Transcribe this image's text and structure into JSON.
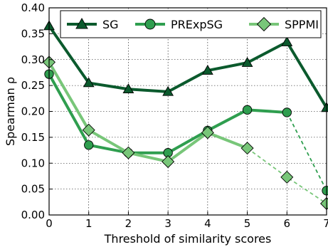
{
  "chart_data": {
    "type": "line",
    "xlabel": "Threshold of similarity scores",
    "ylabel": "Spearman ρ",
    "x": [
      0,
      1,
      2,
      3,
      4,
      5,
      6,
      7
    ],
    "xlim": [
      0,
      7
    ],
    "ylim": [
      0.0,
      0.4
    ],
    "xticks": [
      "0",
      "1",
      "2",
      "3",
      "4",
      "5",
      "6",
      "7"
    ],
    "yticks": [
      "0.00",
      "0.05",
      "0.10",
      "0.15",
      "0.20",
      "0.25",
      "0.30",
      "0.35",
      "0.40"
    ],
    "grid": true,
    "legend_position": "top",
    "series": [
      {
        "name": "SG",
        "color": "#0b5a2d",
        "marker": "triangle",
        "values": [
          0.365,
          0.255,
          0.243,
          0.238,
          0.279,
          0.294,
          0.334,
          0.207
        ],
        "dashed_from_index": null
      },
      {
        "name": "PRExpSG",
        "color": "#2f9e4f",
        "marker": "circle",
        "values": [
          0.272,
          0.135,
          0.12,
          0.12,
          0.163,
          0.203,
          0.198,
          0.047
        ],
        "dashed_from_index": 6
      },
      {
        "name": "SPPMI",
        "color": "#78c679",
        "marker": "diamond",
        "values": [
          0.295,
          0.164,
          0.12,
          0.103,
          0.159,
          0.129,
          0.073,
          0.022
        ],
        "dashed_from_index": 5
      }
    ]
  }
}
